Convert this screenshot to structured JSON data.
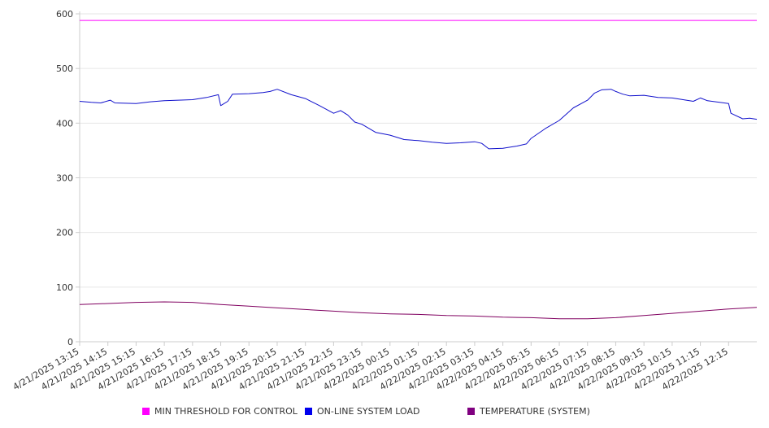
{
  "chart_data": {
    "type": "line",
    "title": "",
    "xlabel": "",
    "ylabel": "",
    "ylim": [
      0,
      600
    ],
    "yticks": [
      0,
      100,
      200,
      300,
      400,
      500,
      600
    ],
    "grid": "horizontal",
    "legend_position": "bottom",
    "x_range": [
      "4/21/2025 13:15",
      "4/22/2025 13:15"
    ],
    "x_ticks": [
      "4/21/2025 13:15",
      "4/21/2025 14:15",
      "4/21/2025 15:15",
      "4/21/2025 16:15",
      "4/21/2025 17:15",
      "4/21/2025 18:15",
      "4/21/2025 19:15",
      "4/21/2025 20:15",
      "4/21/2025 21:15",
      "4/21/2025 22:15",
      "4/21/2025 23:15",
      "4/22/2025 00:15",
      "4/22/2025 01:15",
      "4/22/2025 02:15",
      "4/22/2025 03:15",
      "4/22/2025 04:15",
      "4/22/2025 05:15",
      "4/22/2025 06:15",
      "4/22/2025 07:15",
      "4/22/2025 08:15",
      "4/22/2025 09:15",
      "4/22/2025 10:15",
      "4/22/2025 11:15",
      "4/22/2025 12:15"
    ],
    "series": [
      {
        "name": "MIN THRESHOLD FOR CONTROL",
        "color": "#ff00ff",
        "legend_color": "#ff00ff",
        "points": [
          [
            "4/21/2025 13:15",
            588
          ],
          [
            "4/22/2025 13:15",
            588
          ]
        ]
      },
      {
        "name": "ON-LINE SYSTEM LOAD",
        "color": "#1111cc",
        "legend_color": "#0000ee",
        "points": [
          [
            "4/21/2025 13:15",
            440
          ],
          [
            "4/21/2025 13:40",
            438
          ],
          [
            "4/21/2025 14:00",
            437
          ],
          [
            "4/21/2025 14:20",
            442
          ],
          [
            "4/21/2025 14:30",
            437
          ],
          [
            "4/21/2025 15:15",
            436
          ],
          [
            "4/21/2025 15:45",
            439
          ],
          [
            "4/21/2025 16:15",
            441
          ],
          [
            "4/21/2025 16:45",
            442
          ],
          [
            "4/21/2025 17:15",
            443
          ],
          [
            "4/21/2025 17:45",
            447
          ],
          [
            "4/21/2025 18:10",
            452
          ],
          [
            "4/21/2025 18:15",
            432
          ],
          [
            "4/21/2025 18:30",
            440
          ],
          [
            "4/21/2025 18:40",
            453
          ],
          [
            "4/21/2025 19:15",
            454
          ],
          [
            "4/21/2025 19:45",
            456
          ],
          [
            "4/21/2025 20:00",
            458
          ],
          [
            "4/21/2025 20:15",
            462
          ],
          [
            "4/21/2025 20:45",
            452
          ],
          [
            "4/21/2025 21:15",
            445
          ],
          [
            "4/21/2025 21:45",
            432
          ],
          [
            "4/21/2025 22:15",
            418
          ],
          [
            "4/21/2025 22:30",
            423
          ],
          [
            "4/21/2025 22:45",
            415
          ],
          [
            "4/21/2025 23:00",
            402
          ],
          [
            "4/21/2025 23:15",
            398
          ],
          [
            "4/21/2025 23:45",
            383
          ],
          [
            "4/22/2025 00:15",
            378
          ],
          [
            "4/22/2025 00:45",
            370
          ],
          [
            "4/22/2025 01:15",
            368
          ],
          [
            "4/22/2025 01:45",
            365
          ],
          [
            "4/22/2025 02:15",
            363
          ],
          [
            "4/22/2025 02:45",
            364
          ],
          [
            "4/22/2025 03:15",
            366
          ],
          [
            "4/22/2025 03:30",
            363
          ],
          [
            "4/22/2025 03:45",
            353
          ],
          [
            "4/22/2025 04:15",
            354
          ],
          [
            "4/22/2025 04:45",
            358
          ],
          [
            "4/22/2025 05:05",
            362
          ],
          [
            "4/22/2025 05:15",
            372
          ],
          [
            "4/22/2025 05:45",
            390
          ],
          [
            "4/22/2025 06:15",
            405
          ],
          [
            "4/22/2025 06:45",
            428
          ],
          [
            "4/22/2025 07:15",
            442
          ],
          [
            "4/22/2025 07:30",
            455
          ],
          [
            "4/22/2025 07:45",
            461
          ],
          [
            "4/22/2025 08:05",
            462
          ],
          [
            "4/22/2025 08:15",
            458
          ],
          [
            "4/22/2025 08:30",
            453
          ],
          [
            "4/22/2025 08:45",
            450
          ],
          [
            "4/22/2025 09:15",
            451
          ],
          [
            "4/22/2025 09:45",
            447
          ],
          [
            "4/22/2025 10:15",
            446
          ],
          [
            "4/22/2025 10:45",
            442
          ],
          [
            "4/22/2025 11:00",
            440
          ],
          [
            "4/22/2025 11:15",
            446
          ],
          [
            "4/22/2025 11:30",
            441
          ],
          [
            "4/22/2025 12:15",
            436
          ],
          [
            "4/22/2025 12:20",
            418
          ],
          [
            "4/22/2025 12:45",
            408
          ],
          [
            "4/22/2025 13:00",
            409
          ],
          [
            "4/22/2025 13:15",
            407
          ]
        ]
      },
      {
        "name": "TEMPERATURE (SYSTEM)",
        "color": "#800060",
        "legend_color": "#800080",
        "points": [
          [
            "4/21/2025 13:15",
            68
          ],
          [
            "4/21/2025 14:15",
            70
          ],
          [
            "4/21/2025 15:15",
            72
          ],
          [
            "4/21/2025 16:15",
            73
          ],
          [
            "4/21/2025 17:15",
            72
          ],
          [
            "4/21/2025 18:15",
            68
          ],
          [
            "4/21/2025 19:15",
            65
          ],
          [
            "4/21/2025 20:15",
            62
          ],
          [
            "4/21/2025 21:15",
            59
          ],
          [
            "4/21/2025 22:15",
            56
          ],
          [
            "4/21/2025 23:15",
            53
          ],
          [
            "4/22/2025 00:15",
            51
          ],
          [
            "4/22/2025 01:15",
            50
          ],
          [
            "4/22/2025 02:15",
            48
          ],
          [
            "4/22/2025 03:15",
            47
          ],
          [
            "4/22/2025 04:15",
            45
          ],
          [
            "4/22/2025 05:15",
            44
          ],
          [
            "4/22/2025 06:15",
            42
          ],
          [
            "4/22/2025 07:15",
            42
          ],
          [
            "4/22/2025 08:15",
            44
          ],
          [
            "4/22/2025 09:15",
            48
          ],
          [
            "4/22/2025 10:15",
            52
          ],
          [
            "4/22/2025 11:15",
            56
          ],
          [
            "4/22/2025 12:15",
            60
          ],
          [
            "4/22/2025 13:15",
            63
          ]
        ]
      }
    ]
  },
  "colors": {
    "grid": "#e6e6e6",
    "axis": "#cccccc",
    "text": "#333333"
  }
}
